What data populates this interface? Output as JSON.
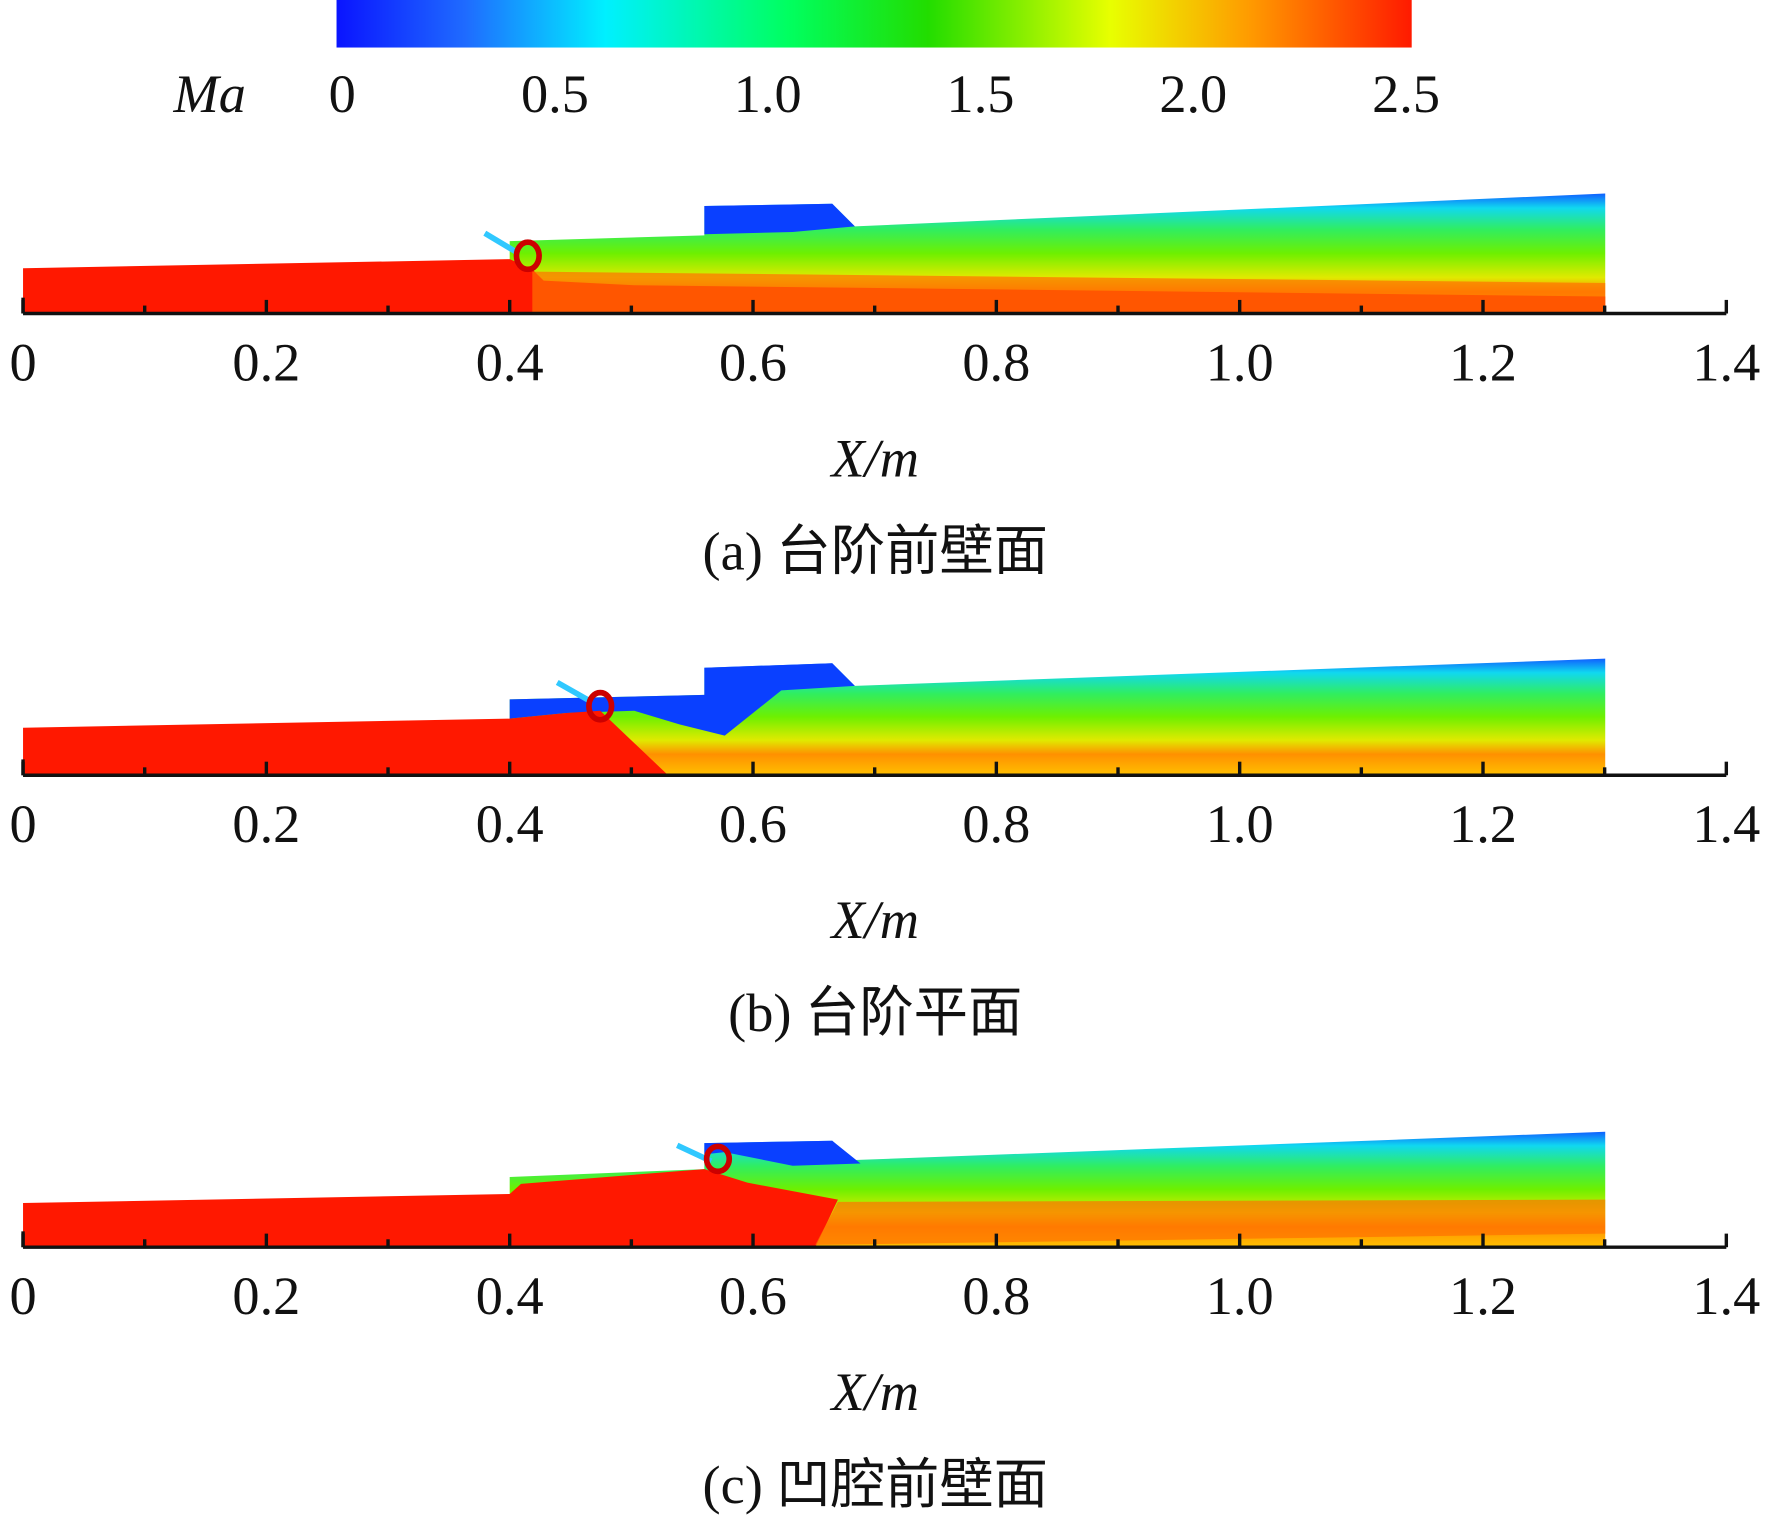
{
  "colorbar": {
    "type": "colorbar",
    "label": "Ma",
    "clim": [
      0,
      2.5
    ],
    "ticks": [
      0,
      0.5,
      {
        "value": 1,
        "label": "1.0"
      },
      1.5,
      {
        "value": 2,
        "label": "2.0"
      },
      2.5
    ]
  },
  "chart_data": [
    {
      "type": "contour",
      "xlabel": "X/m",
      "caption": "(a) 台阶前壁面",
      "xlim": [
        0,
        1.4
      ],
      "xticks": [
        0,
        0.2,
        0.4,
        0.6,
        0.8,
        {
          "value": 1,
          "label": "1.0"
        },
        1.2,
        1.4
      ]
    },
    {
      "type": "contour",
      "xlabel": "X/m",
      "caption": "(b) 台阶平面",
      "xlim": [
        0,
        1.4
      ],
      "xticks": [
        0,
        0.2,
        0.4,
        0.6,
        0.8,
        {
          "value": 1,
          "label": "1.0"
        },
        1.2,
        1.4
      ]
    },
    {
      "type": "contour",
      "xlabel": "X/m",
      "caption": "(c) 凹腔前壁面",
      "xlim": [
        0,
        1.4
      ],
      "xticks": [
        0,
        0.2,
        0.4,
        0.6,
        0.8,
        {
          "value": 1,
          "label": "1.0"
        },
        1.2,
        1.4
      ]
    }
  ]
}
